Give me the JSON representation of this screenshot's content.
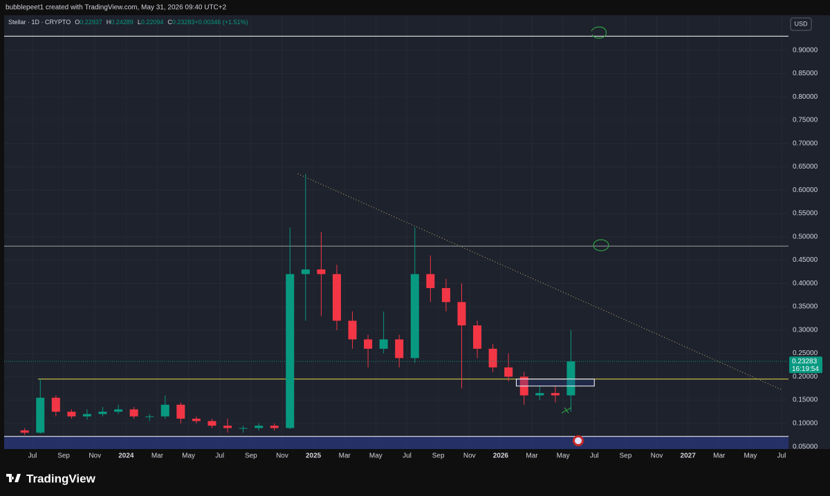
{
  "chart_data": {
    "type": "candlestick",
    "header": "bubblepeet1 created with TradingView.com, May 31, 2026 09:40 UTC+2",
    "symbol": "Stellar · 1D · CRYPTO",
    "legend": [
      {
        "key": "O",
        "text": "0.22937"
      },
      {
        "key": "H",
        "text": "0.24289"
      },
      {
        "key": "L",
        "text": "0.22094"
      },
      {
        "key": "C",
        "text": "0.23283"
      },
      {
        "key": "",
        "text": "+0.00346 (+1.51%)"
      }
    ],
    "currency": "USD",
    "brand": "TradingView",
    "up_color": "#089981",
    "down_color": "#f23645",
    "x": [
      "2023-06",
      "2023-07",
      "2023-08",
      "2023-09",
      "2023-10",
      "2023-11",
      "2023-12",
      "2024-01",
      "2024-02",
      "2024-03",
      "2024-04",
      "2024-05",
      "2024-06",
      "2024-07",
      "2024-08",
      "2024-09",
      "2024-10",
      "2024-11",
      "2024-12",
      "2025-01",
      "2025-02",
      "2025-03",
      "2025-04",
      "2025-05",
      "2025-06",
      "2025-07",
      "2025-08",
      "2025-09",
      "2025-10",
      "2025-11",
      "2025-12",
      "2026-01",
      "2026-02",
      "2026-03",
      "2026-04",
      "2026-05"
    ],
    "open": [
      0.085,
      0.08,
      0.155,
      0.125,
      0.115,
      0.12,
      0.125,
      0.13,
      0.115,
      0.115,
      0.14,
      0.11,
      0.105,
      0.095,
      0.09,
      0.09,
      0.095,
      0.09,
      0.42,
      0.43,
      0.42,
      0.32,
      0.28,
      0.26,
      0.28,
      0.24,
      0.42,
      0.39,
      0.36,
      0.31,
      0.26,
      0.22,
      0.2,
      0.16,
      0.165,
      0.16
    ],
    "high": [
      0.09,
      0.195,
      0.16,
      0.13,
      0.13,
      0.135,
      0.14,
      0.135,
      0.12,
      0.16,
      0.145,
      0.115,
      0.11,
      0.11,
      0.095,
      0.1,
      0.1,
      0.52,
      0.635,
      0.51,
      0.44,
      0.34,
      0.29,
      0.34,
      0.29,
      0.52,
      0.46,
      0.41,
      0.4,
      0.32,
      0.27,
      0.25,
      0.21,
      0.18,
      0.18,
      0.3
    ],
    "low": [
      0.075,
      0.078,
      0.115,
      0.11,
      0.108,
      0.115,
      0.12,
      0.11,
      0.105,
      0.11,
      0.1,
      0.1,
      0.09,
      0.08,
      0.08,
      0.085,
      0.085,
      0.088,
      0.32,
      0.33,
      0.3,
      0.26,
      0.22,
      0.25,
      0.22,
      0.23,
      0.36,
      0.34,
      0.175,
      0.24,
      0.21,
      0.19,
      0.14,
      0.15,
      0.145,
      0.125
    ],
    "close": [
      0.08,
      0.155,
      0.125,
      0.115,
      0.12,
      0.125,
      0.13,
      0.115,
      0.115,
      0.14,
      0.11,
      0.105,
      0.095,
      0.09,
      0.09,
      0.095,
      0.09,
      0.42,
      0.43,
      0.42,
      0.32,
      0.28,
      0.26,
      0.28,
      0.24,
      0.42,
      0.39,
      0.36,
      0.31,
      0.26,
      0.22,
      0.2,
      0.16,
      0.165,
      0.16,
      0.23283
    ],
    "xlim": [
      "2023-06",
      "2027-08"
    ],
    "xticks": [
      {
        "value": "2023-07",
        "label": "Jul"
      },
      {
        "value": "2023-09",
        "label": "Sep"
      },
      {
        "value": "2023-11",
        "label": "Nov"
      },
      {
        "value": "2024-01",
        "label": "2024"
      },
      {
        "value": "2024-03",
        "label": "Mar"
      },
      {
        "value": "2024-05",
        "label": "May"
      },
      {
        "value": "2024-07",
        "label": "Jul"
      },
      {
        "value": "2024-09",
        "label": "Sep"
      },
      {
        "value": "2024-11",
        "label": "Nov"
      },
      {
        "value": "2025-01",
        "label": "2025"
      },
      {
        "value": "2025-03",
        "label": "Mar"
      },
      {
        "value": "2025-05",
        "label": "May"
      },
      {
        "value": "2025-07",
        "label": "Jul"
      },
      {
        "value": "2025-09",
        "label": "Sep"
      },
      {
        "value": "2025-11",
        "label": "Nov"
      },
      {
        "value": "2026-01",
        "label": "2026"
      },
      {
        "value": "2026-03",
        "label": "Mar"
      },
      {
        "value": "2026-05",
        "label": "May"
      },
      {
        "value": "2026-07",
        "label": "Jul"
      },
      {
        "value": "2026-09",
        "label": "Sep"
      },
      {
        "value": "2026-11",
        "label": "Nov"
      },
      {
        "value": "2027-01",
        "label": "2027"
      },
      {
        "value": "2027-03",
        "label": "Mar"
      },
      {
        "value": "2027-05",
        "label": "May"
      },
      {
        "value": "2027-07",
        "label": "Jul"
      }
    ],
    "ylim": [
      0.045,
      0.975
    ],
    "yticks": [
      {
        "value": 0.05,
        "label": "0.05000"
      },
      {
        "value": 0.1,
        "label": "0.10000"
      },
      {
        "value": 0.15,
        "label": "0.15000"
      },
      {
        "value": 0.2,
        "label": "0.20000"
      },
      {
        "value": 0.25,
        "label": "0.25000"
      },
      {
        "value": 0.3,
        "label": "0.30000"
      },
      {
        "value": 0.35,
        "label": "0.35000"
      },
      {
        "value": 0.4,
        "label": "0.40000"
      },
      {
        "value": 0.45,
        "label": "0.45000"
      },
      {
        "value": 0.5,
        "label": "0.50000"
      },
      {
        "value": 0.55,
        "label": "0.55000"
      },
      {
        "value": 0.6,
        "label": "0.60000"
      },
      {
        "value": 0.65,
        "label": "0.65000"
      },
      {
        "value": 0.7,
        "label": "0.70000"
      },
      {
        "value": 0.75,
        "label": "0.75000"
      },
      {
        "value": 0.8,
        "label": "0.80000"
      },
      {
        "value": 0.85,
        "label": "0.85000"
      },
      {
        "value": 0.9,
        "label": "0.90000"
      }
    ],
    "grid": true,
    "levels": [
      {
        "value": 0.93,
        "color": "#ffffff"
      },
      {
        "value": 0.48,
        "color": "#9aa3a0"
      },
      {
        "value": 0.195,
        "color": "#e8e04a"
      }
    ],
    "zone": {
      "low": 0.045,
      "high": 0.072,
      "color": "#2a3a8c"
    },
    "box": {
      "from": "2026-02",
      "to": "2026-07",
      "low": 0.18,
      "high": 0.195
    },
    "trendline": {
      "from": "2024-12",
      "from_value": 0.635,
      "to": "2027-07",
      "to_value": 0.172,
      "color": "#c9b46a"
    },
    "last_price": {
      "value": 0.23283,
      "label": "0.23283",
      "countdown": "16:19:54"
    }
  }
}
